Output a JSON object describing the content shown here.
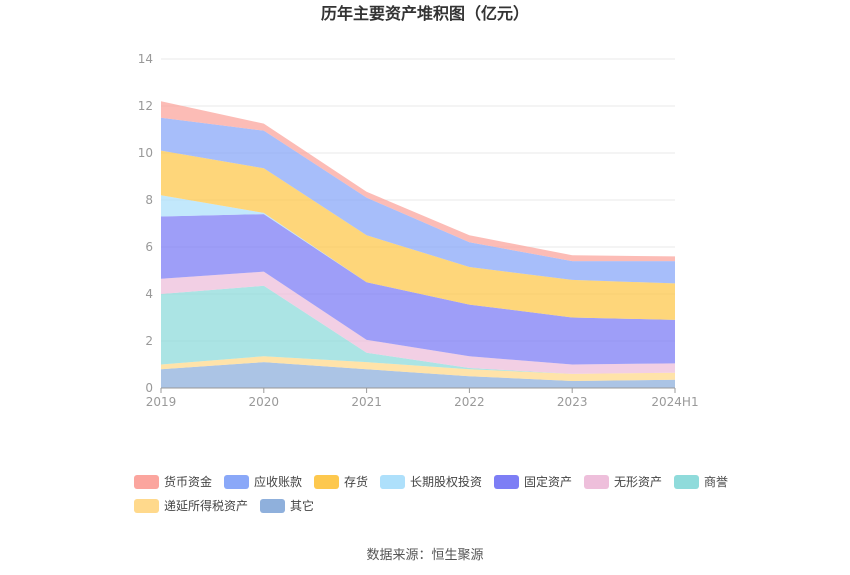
{
  "chart_data": {
    "type": "area",
    "stacked": true,
    "title": "历年主要资产堆积图（亿元）",
    "categories": [
      "2019",
      "2020",
      "2021",
      "2022",
      "2023",
      "2024H1"
    ],
    "ylim": [
      0,
      14
    ],
    "yticks": [
      "0",
      "2",
      "4",
      "6",
      "8",
      "10",
      "12",
      "14"
    ],
    "grid": true,
    "legend_position": "bottom",
    "series": [
      {
        "name": "其它",
        "color": "#8fb0dc",
        "values": [
          0.8,
          1.1,
          0.8,
          0.5,
          0.3,
          0.35
        ]
      },
      {
        "name": "递延所得税资产",
        "color": "#ffd98c",
        "values": [
          0.2,
          0.25,
          0.3,
          0.3,
          0.3,
          0.3
        ]
      },
      {
        "name": "商誉",
        "color": "#8fdbdb",
        "values": [
          3.0,
          3.0,
          0.4,
          0.05,
          0.0,
          0.0
        ]
      },
      {
        "name": "无形资产",
        "color": "#eebfdb",
        "values": [
          0.65,
          0.6,
          0.55,
          0.5,
          0.4,
          0.4
        ]
      },
      {
        "name": "固定资产",
        "color": "#7d7ef5",
        "values": [
          2.65,
          2.45,
          2.45,
          2.2,
          2.0,
          1.85
        ]
      },
      {
        "name": "长期股权投资",
        "color": "#aee0fb",
        "values": [
          0.9,
          0.05,
          0.0,
          0.0,
          0.0,
          0.0
        ]
      },
      {
        "name": "存货",
        "color": "#fdc84e",
        "values": [
          1.9,
          1.9,
          2.0,
          1.6,
          1.6,
          1.55
        ]
      },
      {
        "name": "应收账款",
        "color": "#8aa8f8",
        "values": [
          1.4,
          1.6,
          1.6,
          1.05,
          0.8,
          0.95
        ]
      },
      {
        "name": "货币资金",
        "color": "#fba59e",
        "values": [
          0.7,
          0.3,
          0.25,
          0.3,
          0.25,
          0.2
        ]
      }
    ],
    "legend_order": [
      "货币资金",
      "应收账款",
      "存货",
      "长期股权投资",
      "固定资产",
      "无形资产",
      "商誉",
      "递延所得税资产",
      "其它"
    ]
  },
  "source": "数据来源：恒生聚源"
}
